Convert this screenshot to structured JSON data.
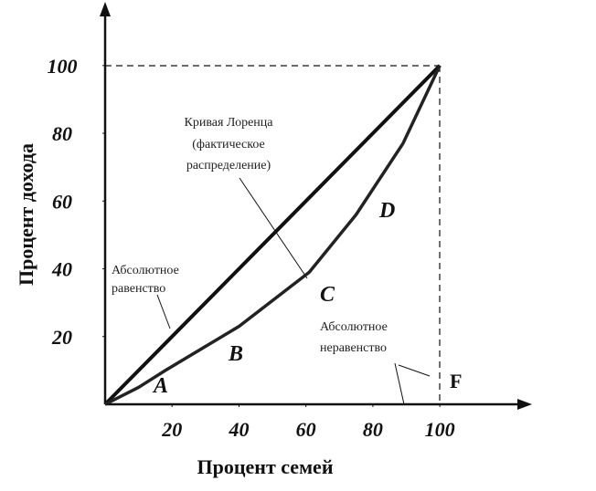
{
  "chart_data": {
    "type": "line",
    "x_label": "Процент семей",
    "y_label": "Процент дохода",
    "x": [
      0,
      10,
      18,
      40,
      61,
      75,
      89,
      100
    ],
    "series": [
      {
        "name": "Абсолютное равенство",
        "color": "#111111",
        "values": [
          0,
          10,
          18,
          40,
          61,
          75,
          89,
          100
        ]
      },
      {
        "name": "Кривая Лоренца",
        "color": "#222222",
        "values": [
          0,
          5,
          10,
          23,
          39,
          56,
          77,
          100
        ]
      }
    ],
    "xlim": [
      0,
      127
    ],
    "ylim": [
      0,
      118
    ],
    "xticks": [
      20,
      40,
      60,
      80,
      100
    ],
    "yticks": [
      20,
      40,
      60,
      80,
      100
    ],
    "annotations": {
      "lorenz": [
        "Кривая Лоренца",
        "(фактическое",
        "распределение)"
      ],
      "equality": [
        "Абсолютное",
        "равенство"
      ],
      "inequality": [
        "Абсолютное",
        "неравенство"
      ],
      "points": [
        "A",
        "B",
        "C",
        "D"
      ],
      "corner": "F"
    }
  }
}
